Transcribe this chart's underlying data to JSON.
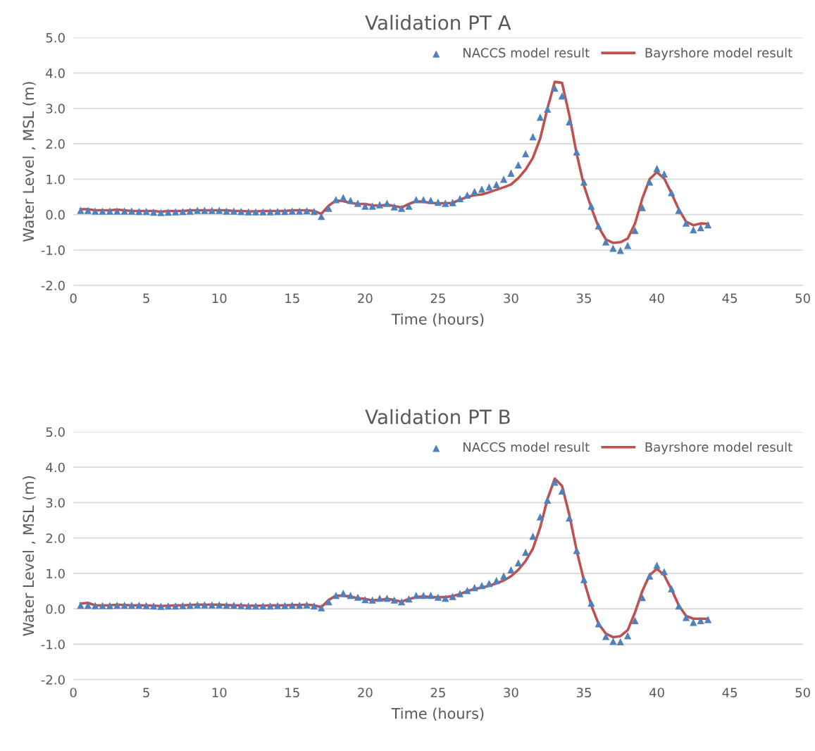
{
  "chart_data": [
    {
      "type": "line",
      "title": "Validation PT A",
      "xlabel": "Time (hours)",
      "ylabel": "Water Level , MSL (m)",
      "x": [
        0.5,
        1,
        1.5,
        2,
        2.5,
        3,
        3.5,
        4,
        4.5,
        5,
        5.5,
        6,
        6.5,
        7,
        7.5,
        8,
        8.5,
        9,
        9.5,
        10,
        10.5,
        11,
        11.5,
        12,
        12.5,
        13,
        13.5,
        14,
        14.5,
        15,
        15.5,
        16,
        16.5,
        17,
        17.5,
        18,
        18.5,
        19,
        19.5,
        20,
        20.5,
        21,
        21.5,
        22,
        22.5,
        23,
        23.5,
        24,
        24.5,
        25,
        25.5,
        26,
        26.5,
        27,
        27.5,
        28,
        28.5,
        29,
        29.5,
        30,
        30.5,
        31,
        31.5,
        32,
        32.5,
        33,
        33.5,
        34,
        34.5,
        35,
        35.5,
        36,
        36.5,
        37,
        37.5,
        38,
        38.5,
        39,
        39.5,
        40,
        40.5,
        41,
        41.5,
        42,
        42.5,
        43,
        43.5
      ],
      "series": [
        {
          "name": "NACCS model result",
          "type": "scatter",
          "marker": "triangle",
          "color": "#4f81bd",
          "values": [
            0.12,
            0.12,
            0.1,
            0.1,
            0.1,
            0.1,
            0.1,
            0.1,
            0.09,
            0.09,
            0.07,
            0.06,
            0.07,
            0.08,
            0.09,
            0.1,
            0.12,
            0.12,
            0.12,
            0.12,
            0.1,
            0.1,
            0.09,
            0.08,
            0.08,
            0.08,
            0.08,
            0.09,
            0.09,
            0.1,
            0.1,
            0.11,
            0.09,
            -0.05,
            0.18,
            0.42,
            0.48,
            0.4,
            0.32,
            0.24,
            0.24,
            0.28,
            0.32,
            0.22,
            0.18,
            0.24,
            0.42,
            0.42,
            0.4,
            0.35,
            0.32,
            0.34,
            0.45,
            0.55,
            0.65,
            0.72,
            0.78,
            0.85,
            1.0,
            1.17,
            1.4,
            1.72,
            2.2,
            2.75,
            2.98,
            3.57,
            3.35,
            2.62,
            1.77,
            0.92,
            0.24,
            -0.32,
            -0.77,
            -0.95,
            -1.01,
            -0.87,
            -0.45,
            0.2,
            0.92,
            1.3,
            1.15,
            0.62,
            0.12,
            -0.24,
            -0.43,
            -0.37,
            -0.29
          ]
        },
        {
          "name": "Bayrshore model result",
          "marker": "none",
          "line_style": "solid",
          "color": "#c0504d",
          "values": [
            0.15,
            0.15,
            0.12,
            0.12,
            0.12,
            0.14,
            0.12,
            0.1,
            0.1,
            0.1,
            0.1,
            0.08,
            0.1,
            0.1,
            0.1,
            0.12,
            0.12,
            0.12,
            0.12,
            0.12,
            0.12,
            0.1,
            0.1,
            0.09,
            0.09,
            0.1,
            0.1,
            0.1,
            0.1,
            0.12,
            0.12,
            0.12,
            0.1,
            0.02,
            0.25,
            0.4,
            0.38,
            0.33,
            0.3,
            0.3,
            0.26,
            0.25,
            0.28,
            0.24,
            0.2,
            0.3,
            0.38,
            0.36,
            0.33,
            0.32,
            0.32,
            0.33,
            0.42,
            0.5,
            0.55,
            0.57,
            0.63,
            0.7,
            0.77,
            0.85,
            1.03,
            1.27,
            1.6,
            2.15,
            3.0,
            3.75,
            3.72,
            2.8,
            1.72,
            0.82,
            0.2,
            -0.35,
            -0.7,
            -0.8,
            -0.78,
            -0.68,
            -0.25,
            0.45,
            1.0,
            1.2,
            1.02,
            0.6,
            0.15,
            -0.2,
            -0.3,
            -0.25,
            -0.26
          ]
        }
      ],
      "xlim": [
        0,
        50
      ],
      "xticks": [
        0,
        5,
        10,
        15,
        20,
        25,
        30,
        35,
        40,
        45,
        50
      ],
      "ylim": [
        -2,
        5
      ],
      "yticks": [
        {
          "value": -2,
          "label": "-2.0"
        },
        {
          "value": -1,
          "label": "-1.0"
        },
        {
          "value": 0,
          "label": "0.0"
        },
        {
          "value": 1,
          "label": "1.0"
        },
        {
          "value": 2,
          "label": "2.0"
        },
        {
          "value": 3,
          "label": "3.0"
        },
        {
          "value": 4,
          "label": "4.0"
        },
        {
          "value": 5,
          "label": "5.0"
        }
      ],
      "grid": "y",
      "legend": "top right"
    },
    {
      "type": "line",
      "title": "Validation PT B",
      "xlabel": "Time (hours)",
      "ylabel": "Water Level , MSL (m)",
      "x": [
        0.5,
        1,
        1.5,
        2,
        2.5,
        3,
        3.5,
        4,
        4.5,
        5,
        5.5,
        6,
        6.5,
        7,
        7.5,
        8,
        8.5,
        9,
        9.5,
        10,
        10.5,
        11,
        11.5,
        12,
        12.5,
        13,
        13.5,
        14,
        14.5,
        15,
        15.5,
        16,
        16.5,
        17,
        17.5,
        18,
        18.5,
        19,
        19.5,
        20,
        20.5,
        21,
        21.5,
        22,
        22.5,
        23,
        23.5,
        24,
        24.5,
        25,
        25.5,
        26,
        26.5,
        27,
        27.5,
        28,
        28.5,
        29,
        29.5,
        30,
        30.5,
        31,
        31.5,
        32,
        32.5,
        33,
        33.5,
        34,
        34.5,
        35,
        35.5,
        36,
        36.5,
        37,
        37.5,
        38,
        38.5,
        39,
        39.5,
        40,
        40.5,
        41,
        41.5,
        42,
        42.5,
        43,
        43.5
      ],
      "series": [
        {
          "name": "NACCS model result",
          "type": "scatter",
          "marker": "triangle",
          "color": "#4f81bd",
          "values": [
            0.1,
            0.1,
            0.09,
            0.09,
            0.09,
            0.1,
            0.1,
            0.1,
            0.1,
            0.09,
            0.08,
            0.07,
            0.08,
            0.08,
            0.09,
            0.1,
            0.11,
            0.11,
            0.11,
            0.11,
            0.1,
            0.1,
            0.09,
            0.08,
            0.08,
            0.08,
            0.08,
            0.09,
            0.09,
            0.1,
            0.1,
            0.11,
            0.08,
            0.03,
            0.2,
            0.38,
            0.44,
            0.38,
            0.33,
            0.26,
            0.25,
            0.3,
            0.3,
            0.25,
            0.2,
            0.28,
            0.38,
            0.38,
            0.38,
            0.33,
            0.3,
            0.35,
            0.43,
            0.52,
            0.6,
            0.66,
            0.72,
            0.8,
            0.93,
            1.1,
            1.3,
            1.6,
            2.05,
            2.6,
            3.07,
            3.58,
            3.33,
            2.57,
            1.65,
            0.83,
            0.16,
            -0.42,
            -0.78,
            -0.92,
            -0.93,
            -0.76,
            -0.33,
            0.32,
            0.93,
            1.23,
            1.05,
            0.57,
            0.08,
            -0.24,
            -0.38,
            -0.33,
            -0.3
          ]
        },
        {
          "name": "Bayrshore model result",
          "marker": "none",
          "line_style": "solid",
          "color": "#c0504d",
          "values": [
            0.15,
            0.17,
            0.1,
            0.1,
            0.1,
            0.12,
            0.11,
            0.1,
            0.1,
            0.1,
            0.09,
            0.08,
            0.09,
            0.1,
            0.1,
            0.11,
            0.12,
            0.12,
            0.12,
            0.12,
            0.11,
            0.1,
            0.1,
            0.09,
            0.09,
            0.09,
            0.1,
            0.1,
            0.1,
            0.11,
            0.11,
            0.12,
            0.1,
            0.05,
            0.25,
            0.37,
            0.37,
            0.35,
            0.3,
            0.28,
            0.24,
            0.25,
            0.28,
            0.25,
            0.2,
            0.28,
            0.33,
            0.35,
            0.33,
            0.33,
            0.33,
            0.36,
            0.42,
            0.5,
            0.56,
            0.6,
            0.65,
            0.72,
            0.8,
            0.92,
            1.1,
            1.35,
            1.7,
            2.3,
            3.1,
            3.68,
            3.47,
            2.65,
            1.65,
            0.8,
            0.1,
            -0.42,
            -0.7,
            -0.8,
            -0.77,
            -0.6,
            -0.1,
            0.5,
            0.95,
            1.13,
            0.95,
            0.55,
            0.1,
            -0.2,
            -0.28,
            -0.28,
            -0.28
          ]
        }
      ],
      "xlim": [
        0,
        50
      ],
      "xticks": [
        0,
        5,
        10,
        15,
        20,
        25,
        30,
        35,
        40,
        45,
        50
      ],
      "ylim": [
        -2,
        5
      ],
      "yticks": [
        {
          "value": -2,
          "label": "-2.0"
        },
        {
          "value": -1,
          "label": "-1.0"
        },
        {
          "value": 0,
          "label": "0.0"
        },
        {
          "value": 1,
          "label": "1.0"
        },
        {
          "value": 2,
          "label": "2.0"
        },
        {
          "value": 3,
          "label": "3.0"
        },
        {
          "value": 4,
          "label": "4.0"
        },
        {
          "value": 5,
          "label": "5.0"
        }
      ],
      "grid": "y",
      "legend": "top right"
    }
  ]
}
